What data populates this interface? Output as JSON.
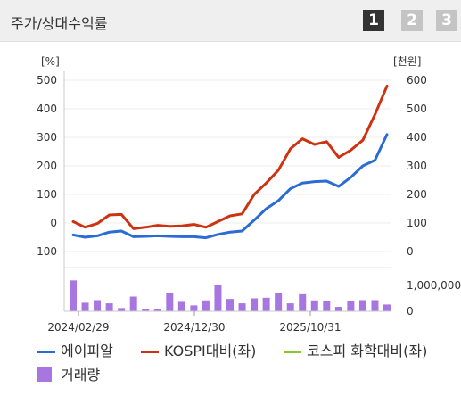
{
  "header": {
    "title": "주가/상대수익률",
    "tabs": [
      "1",
      "2",
      "3"
    ]
  },
  "chart_data": {
    "type": "line",
    "left_unit": "[%]",
    "right_unit": "[천원]",
    "left_ticks": [
      "500",
      "400",
      "300",
      "200",
      "100",
      "0",
      "-100"
    ],
    "right_ticks": [
      "600",
      "500",
      "400",
      "300",
      "200",
      "100",
      "0"
    ],
    "volume_ticks": [
      "1,000,000",
      "0"
    ],
    "x_ticks": [
      "2024/02/29",
      "2024/12/30",
      "2025/10/31"
    ],
    "left_ylim": [
      -100,
      500
    ],
    "right_ylim": [
      0,
      600
    ],
    "series": [
      {
        "name": "에이피알",
        "color": "#2b6cd4",
        "axis": "right",
        "values": [
          58,
          50,
          55,
          68,
          72,
          52,
          53,
          55,
          53,
          52,
          52,
          48,
          60,
          68,
          72,
          110,
          150,
          178,
          220,
          240,
          245,
          247,
          228,
          260,
          300,
          320,
          410
        ]
      },
      {
        "name": "KOSPI대비(좌)",
        "color": "#cc3311",
        "axis": "left",
        "values": [
          5,
          -15,
          -2,
          28,
          30,
          -20,
          -15,
          -8,
          -12,
          -10,
          -5,
          -15,
          5,
          25,
          32,
          100,
          140,
          185,
          260,
          295,
          275,
          285,
          230,
          255,
          290,
          380,
          480
        ]
      },
      {
        "name": "코스피 화학대비(좌)",
        "color": "#88c825",
        "axis": "left",
        "values": []
      }
    ],
    "volume": {
      "name": "거래량",
      "color": "#a776e0",
      "values": [
        1050000,
        290000,
        380000,
        270000,
        110000,
        500000,
        80000,
        80000,
        620000,
        320000,
        200000,
        370000,
        900000,
        420000,
        270000,
        440000,
        460000,
        620000,
        270000,
        580000,
        370000,
        360000,
        150000,
        360000,
        380000,
        380000,
        230000
      ]
    }
  }
}
